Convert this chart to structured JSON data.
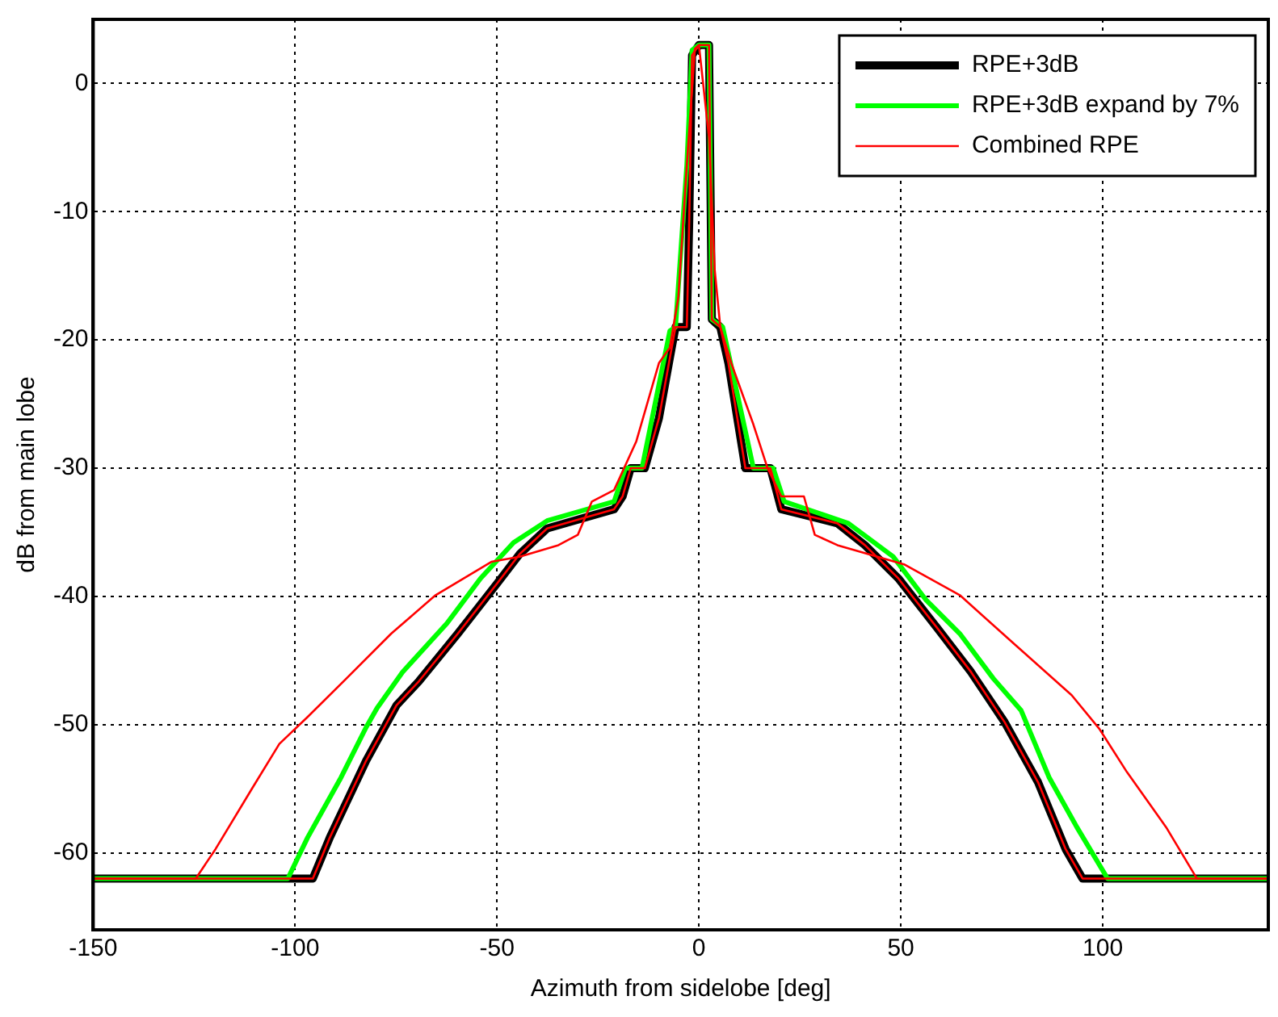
{
  "chart_data": {
    "type": "line",
    "xlabel": "Azimuth from sidelobe [deg]",
    "ylabel": "dB from main lobe",
    "xlim": [
      -150,
      141
    ],
    "ylim": [
      -66,
      5
    ],
    "xticks": [
      -150,
      -100,
      -50,
      0,
      50,
      100
    ],
    "yticks": [
      -60,
      -50,
      -40,
      -30,
      -20,
      -10,
      0
    ],
    "grid": true,
    "legend": "top right",
    "line_style": "solid",
    "marker": "none",
    "series": [
      {
        "name": "RPE+3dB",
        "color": "#000000",
        "x": [
          -150,
          -95.6,
          -91.4,
          -82.4,
          -74.9,
          -69.3,
          -59.7,
          -50,
          -44.4,
          -37.6,
          -21,
          -18.9,
          -16.9,
          -13.4,
          -9.9,
          -7.2,
          -5.8,
          -3,
          -2.4,
          -1.7,
          0,
          2.5,
          3.2,
          5.3,
          7.3,
          11.5,
          17.7,
          20.4,
          34.3,
          41.1,
          49.4,
          59.1,
          67.4,
          75.7,
          84,
          90.8,
          95,
          141
        ],
        "values": [
          -62,
          -62,
          -58.8,
          -52.8,
          -48.5,
          -46.6,
          -42.9,
          -39,
          -36.7,
          -34.7,
          -33.2,
          -32.2,
          -30,
          -30,
          -26.1,
          -21.4,
          -19,
          -19,
          -10.7,
          2.2,
          3,
          3,
          -18.4,
          -19,
          -21.8,
          -30,
          -30,
          -33.2,
          -34.3,
          -36,
          -38.6,
          -42.5,
          -45.9,
          -49.8,
          -54.5,
          -59.7,
          -62,
          -62
        ]
      },
      {
        "name": "RPE+3dB expand by 7%",
        "color": "#00ff00",
        "x": [
          -150,
          -101.8,
          -96.9,
          -88.6,
          -82.4,
          -79.7,
          -73.4,
          -62.4,
          -54.1,
          -45.9,
          -37.6,
          -21,
          -18.2,
          -14.1,
          -7.2,
          -5.8,
          -3,
          -1.7,
          0,
          2.5,
          3.2,
          5.9,
          13.5,
          18.4,
          21.1,
          37,
          48.1,
          56.3,
          64.6,
          72.9,
          79.8,
          86.7,
          93.6,
          101.2,
          141
        ],
        "values": [
          -62,
          -62,
          -58.8,
          -54.1,
          -50.2,
          -48.7,
          -45.9,
          -42.1,
          -38.6,
          -35.8,
          -34.1,
          -32.6,
          -30,
          -30,
          -19.3,
          -19,
          -6.4,
          2.6,
          3,
          3,
          -18.4,
          -19,
          -30,
          -30,
          -32.6,
          -34.3,
          -36.9,
          -40.3,
          -42.9,
          -46.4,
          -48.9,
          -54.1,
          -58,
          -62,
          -62
        ]
      },
      {
        "name": "Combined RPE",
        "color": "#ff0000",
        "x": [
          -150,
          -124.6,
          -119.7,
          -110.7,
          -103.9,
          -96.9,
          -87.3,
          -76.2,
          -65.2,
          -51.4,
          -44.4,
          -34.8,
          -30,
          -26.5,
          -21,
          -15.5,
          -9.9,
          -7.2,
          -5.1,
          -3,
          -1,
          0,
          2.5,
          3.9,
          5.3,
          8,
          13.5,
          17,
          20.4,
          26,
          28.7,
          34.3,
          50.8,
          64.6,
          78.4,
          92.3,
          99.1,
          106,
          115.7,
          123.3,
          141
        ],
        "values": [
          -62,
          -62,
          -59.7,
          -55,
          -51.5,
          -49.4,
          -46.4,
          -42.9,
          -39.9,
          -37.3,
          -36.9,
          -36,
          -35.2,
          -32.6,
          -31.7,
          -27.9,
          -21.8,
          -20.6,
          -16.7,
          -6.4,
          2.7,
          3,
          -4.2,
          -14.5,
          -19,
          -21.8,
          -26.6,
          -30,
          -32.2,
          -32.2,
          -35.2,
          -36,
          -37.5,
          -39.9,
          -43.8,
          -47.7,
          -50.3,
          -53.7,
          -58,
          -62,
          -62
        ]
      },
      {
        "color": "#ff0000",
        "x": [
          -150,
          -95.6,
          -91.4,
          -82.4,
          -74.9,
          -69.3,
          -59.7,
          -50,
          -44.4,
          -37.6,
          -21,
          -18.9,
          -16.9,
          -13.4,
          -9.9,
          -7.2,
          -5.8,
          -3,
          -2.4,
          -1.7,
          0,
          2.5,
          3.2,
          5.3,
          7.3,
          11.5,
          17.7,
          20.4,
          34.3,
          41.1,
          49.4,
          59.1,
          67.4,
          75.7,
          84,
          90.8,
          95,
          141
        ],
        "values": [
          -62,
          -62,
          -58.8,
          -52.8,
          -48.5,
          -46.6,
          -42.9,
          -39,
          -36.7,
          -34.7,
          -33.2,
          -32.2,
          -30,
          -30,
          -26.1,
          -21.4,
          -19,
          -19,
          -10.7,
          2.2,
          3,
          3,
          -18.4,
          -19,
          -21.8,
          -30,
          -30,
          -33.2,
          -34.3,
          -36,
          -38.6,
          -42.5,
          -45.9,
          -49.8,
          -54.5,
          -59.7,
          -62,
          -62
        ]
      }
    ]
  }
}
